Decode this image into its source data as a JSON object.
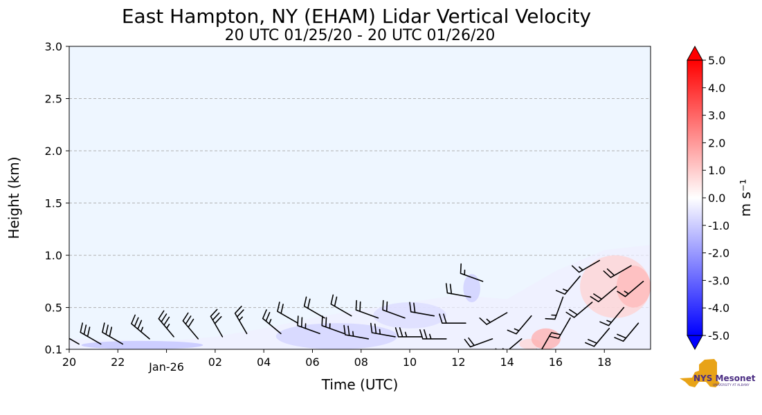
{
  "chart_data": {
    "type": "heatmap",
    "title": "East Hampton, NY (EHAM) Lidar Vertical Velocity",
    "subtitle": "20 UTC 01/25/20 - 20 UTC 01/26/20",
    "xlabel": "Time (UTC)",
    "ylabel": "Height (km)",
    "x_ticks": [
      {
        "hour": 0,
        "label": "20"
      },
      {
        "hour": 2,
        "label": "22"
      },
      {
        "hour": 4,
        "label": "Jan-26"
      },
      {
        "hour": 6,
        "label": "02"
      },
      {
        "hour": 8,
        "label": "04"
      },
      {
        "hour": 10,
        "label": "06"
      },
      {
        "hour": 12,
        "label": "08"
      },
      {
        "hour": 14,
        "label": "10"
      },
      {
        "hour": 16,
        "label": "12"
      },
      {
        "hour": 18,
        "label": "14"
      },
      {
        "hour": 20,
        "label": "16"
      },
      {
        "hour": 22,
        "label": "18"
      }
    ],
    "xlim_hours": [
      0,
      23.9
    ],
    "y_ticks": [
      {
        "value": 0.1,
        "label": "0.1"
      },
      {
        "value": 0.5,
        "label": "0.5"
      },
      {
        "value": 1.0,
        "label": "1.0"
      },
      {
        "value": 1.5,
        "label": "1.5"
      },
      {
        "value": 2.0,
        "label": "2.0"
      },
      {
        "value": 2.5,
        "label": "2.5"
      },
      {
        "value": 3.0,
        "label": "3.0"
      }
    ],
    "ylim": [
      0.1,
      3.0
    ],
    "grid": "horizontal dashed",
    "colorbar": {
      "label": "m s⁻¹",
      "range": [
        -5.0,
        5.0
      ],
      "ticks": [
        "5.0",
        "4.0",
        "3.0",
        "2.0",
        "1.0",
        "0.0",
        "-1.0",
        "-2.0",
        "-3.0",
        "-4.0",
        "-5.0"
      ],
      "colors": {
        "min": "#0000ff",
        "mid": "#ffffff",
        "max": "#ff0000"
      }
    },
    "background_color": "#eef6ff",
    "data_top_km": [
      [
        0,
        0.2
      ],
      [
        2,
        0.19
      ],
      [
        4,
        0.18
      ],
      [
        6,
        0.22
      ],
      [
        8,
        0.3
      ],
      [
        10,
        0.4
      ],
      [
        12,
        0.48
      ],
      [
        14,
        0.55
      ],
      [
        16,
        0.62
      ],
      [
        18,
        0.58
      ],
      [
        20,
        0.85
      ],
      [
        22,
        1.05
      ],
      [
        23.9,
        1.1
      ]
    ],
    "velocity_regions": [
      {
        "t0": 0.5,
        "t1": 5.5,
        "h0": 0.1,
        "h1": 0.18,
        "w": -1.2
      },
      {
        "t0": 8.5,
        "t1": 13.5,
        "h0": 0.1,
        "h1": 0.35,
        "w": -0.9
      },
      {
        "t0": 12.5,
        "t1": 15.5,
        "h0": 0.3,
        "h1": 0.55,
        "w": -0.7
      },
      {
        "t0": 16.2,
        "t1": 16.9,
        "h0": 0.55,
        "h1": 0.82,
        "w": -1.0
      },
      {
        "t0": 18.5,
        "t1": 19.4,
        "h0": 0.1,
        "h1": 0.2,
        "w": 0.8
      },
      {
        "t0": 19.0,
        "t1": 20.2,
        "h0": 0.1,
        "h1": 0.3,
        "w": 1.6
      },
      {
        "t0": 21.0,
        "t1": 23.9,
        "h0": 0.4,
        "h1": 1.0,
        "w": 0.9
      },
      {
        "t0": 22.5,
        "t1": 23.9,
        "h0": 0.5,
        "h1": 0.9,
        "w": 1.4
      }
    ],
    "wind_barbs": [
      {
        "t": 0.4,
        "h": 0.15,
        "dir": 300,
        "kt": 25
      },
      {
        "t": 1.3,
        "h": 0.15,
        "dir": 300,
        "kt": 30
      },
      {
        "t": 2.2,
        "h": 0.15,
        "dir": 300,
        "kt": 30
      },
      {
        "t": 3.3,
        "h": 0.2,
        "dir": 310,
        "kt": 35
      },
      {
        "t": 4.3,
        "h": 0.22,
        "dir": 320,
        "kt": 35
      },
      {
        "t": 5.3,
        "h": 0.2,
        "dir": 320,
        "kt": 30
      },
      {
        "t": 6.3,
        "h": 0.22,
        "dir": 330,
        "kt": 30
      },
      {
        "t": 7.3,
        "h": 0.25,
        "dir": 330,
        "kt": 25
      },
      {
        "t": 8.7,
        "h": 0.25,
        "dir": 310,
        "kt": 25
      },
      {
        "t": 9.4,
        "h": 0.35,
        "dir": 300,
        "kt": 20
      },
      {
        "t": 10.3,
        "h": 0.25,
        "dir": 290,
        "kt": 25
      },
      {
        "t": 10.5,
        "h": 0.4,
        "dir": 300,
        "kt": 20
      },
      {
        "t": 11.3,
        "h": 0.25,
        "dir": 290,
        "kt": 25
      },
      {
        "t": 11.6,
        "h": 0.42,
        "dir": 300,
        "kt": 20
      },
      {
        "t": 12.3,
        "h": 0.2,
        "dir": 280,
        "kt": 25
      },
      {
        "t": 12.7,
        "h": 0.4,
        "dir": 290,
        "kt": 20
      },
      {
        "t": 13.4,
        "h": 0.22,
        "dir": 280,
        "kt": 25
      },
      {
        "t": 13.8,
        "h": 0.4,
        "dir": 290,
        "kt": 20
      },
      {
        "t": 14.5,
        "h": 0.22,
        "dir": 270,
        "kt": 25
      },
      {
        "t": 15.0,
        "h": 0.42,
        "dir": 280,
        "kt": 20
      },
      {
        "t": 15.5,
        "h": 0.2,
        "dir": 270,
        "kt": 25
      },
      {
        "t": 16.3,
        "h": 0.35,
        "dir": 270,
        "kt": 20
      },
      {
        "t": 16.5,
        "h": 0.6,
        "dir": 280,
        "kt": 20
      },
      {
        "t": 17.0,
        "h": 0.75,
        "dir": 290,
        "kt": 15
      },
      {
        "t": 17.4,
        "h": 0.2,
        "dir": 250,
        "kt": 20
      },
      {
        "t": 18.0,
        "h": 0.45,
        "dir": 240,
        "kt": 15
      },
      {
        "t": 18.6,
        "h": 0.2,
        "dir": 230,
        "kt": 15
      },
      {
        "t": 19.0,
        "h": 0.42,
        "dir": 220,
        "kt": 15
      },
      {
        "t": 19.8,
        "h": 0.25,
        "dir": 210,
        "kt": 15
      },
      {
        "t": 20.3,
        "h": 0.6,
        "dir": 200,
        "kt": 15
      },
      {
        "t": 20.6,
        "h": 0.4,
        "dir": 210,
        "kt": 20
      },
      {
        "t": 21.0,
        "h": 0.8,
        "dir": 220,
        "kt": 15
      },
      {
        "t": 21.5,
        "h": 0.55,
        "dir": 230,
        "kt": 20
      },
      {
        "t": 21.8,
        "h": 0.95,
        "dir": 240,
        "kt": 15
      },
      {
        "t": 22.2,
        "h": 0.3,
        "dir": 220,
        "kt": 20
      },
      {
        "t": 22.5,
        "h": 0.7,
        "dir": 230,
        "kt": 20
      },
      {
        "t": 22.8,
        "h": 0.5,
        "dir": 220,
        "kt": 15
      },
      {
        "t": 23.1,
        "h": 0.9,
        "dir": 240,
        "kt": 20
      },
      {
        "t": 23.4,
        "h": 0.35,
        "dir": 220,
        "kt": 20
      },
      {
        "t": 23.6,
        "h": 0.75,
        "dir": 230,
        "kt": 15
      }
    ]
  },
  "logo": {
    "text_main": "NYS Mesonet",
    "text_sub": "UNIVERSITY AT ALBANY",
    "state_color": "#e8a317",
    "text_color": "#4b2e83"
  }
}
